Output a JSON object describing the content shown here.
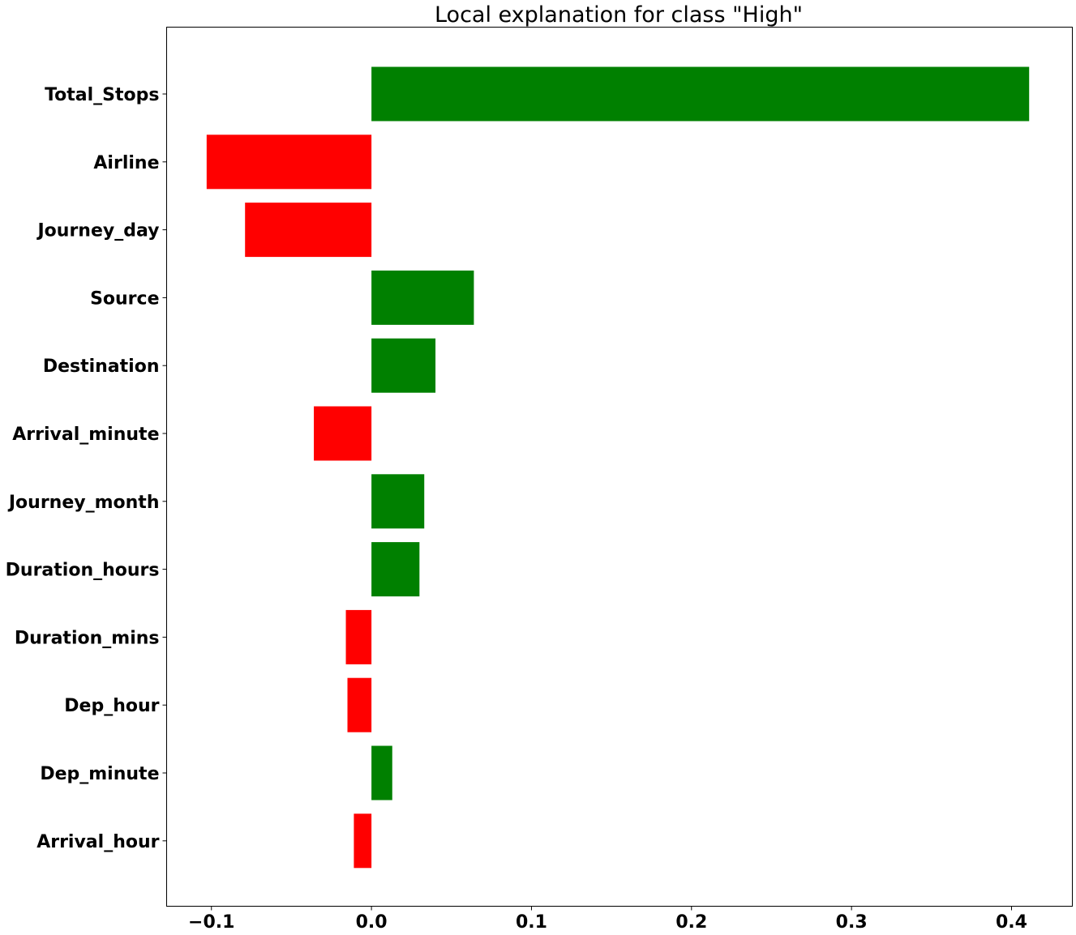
{
  "chart_data": {
    "type": "bar",
    "orientation": "horizontal",
    "title": "Local explanation for class \"High\"",
    "xlabel": "",
    "ylabel": "",
    "xlim": [
      -0.128,
      0.438
    ],
    "xticks": [
      -0.1,
      0.0,
      0.1,
      0.2,
      0.3,
      0.4
    ],
    "xtick_labels": [
      "−0.1",
      "0.0",
      "0.1",
      "0.2",
      "0.3",
      "0.4"
    ],
    "grid": false,
    "positive_color": "#008000",
    "negative_color": "#ff0000",
    "categories": [
      "Total_Stops",
      "Airline",
      "Journey_day",
      "Source",
      "Destination",
      "Arrival_minute",
      "Journey_month",
      "Duration_hours",
      "Duration_mins",
      "Dep_hour",
      "Dep_minute",
      "Arrival_hour"
    ],
    "values": [
      0.411,
      -0.103,
      -0.079,
      0.064,
      0.04,
      -0.036,
      0.033,
      0.03,
      -0.016,
      -0.015,
      0.013,
      -0.011
    ]
  }
}
